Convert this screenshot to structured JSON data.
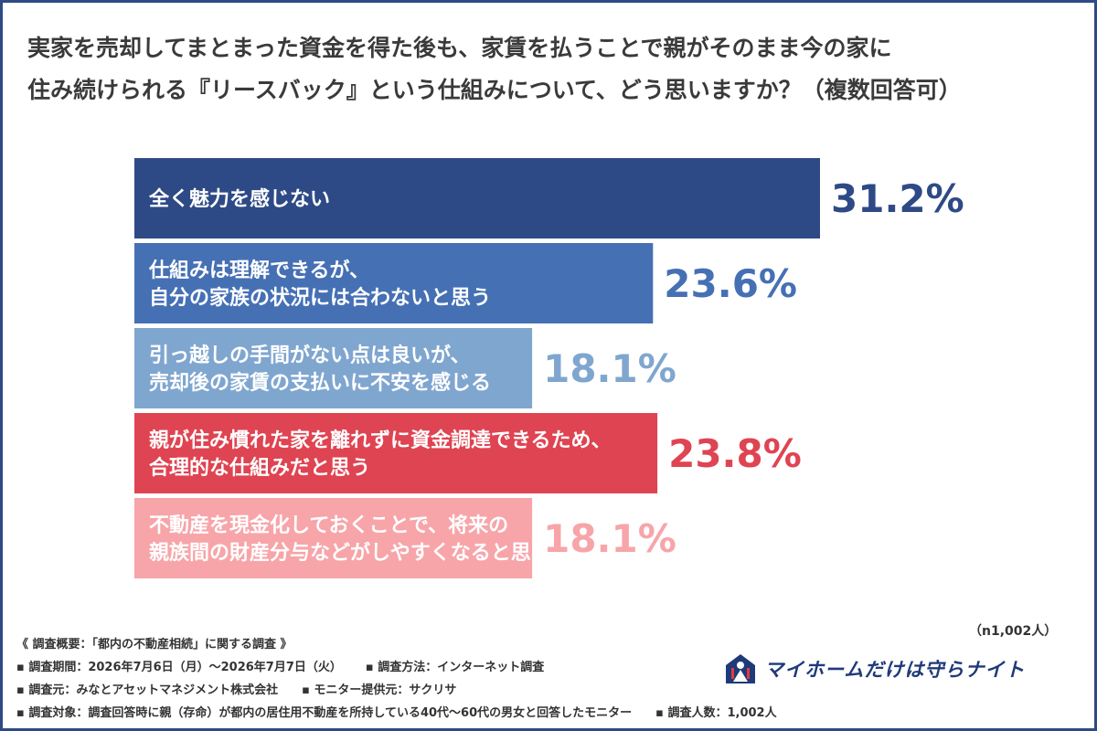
{
  "title": {
    "line1": "実家を売却してまとまった資金を得た後も、家賃を払うことで親がそのまま今の家に",
    "line2": "住み続けられる『リースバック』という仕組みについて、どう思いますか？（複数回答可）"
  },
  "chart_data": {
    "type": "bar",
    "orientation": "horizontal",
    "categories": [
      [
        "全く魅力を感じない"
      ],
      [
        "仕組みは理解できるが、",
        "自分の家族の状況には合わないと思う"
      ],
      [
        "引っ越しの手間がない点は良いが、",
        "売却後の家賃の支払いに不安を感じる"
      ],
      [
        "親が住み慣れた家を離れずに資金調達できるため、",
        "合理的な仕組みだと思う"
      ],
      [
        "不動産を現金化しておくことで、将来の",
        "親族間の財産分与などがしやすくなると思う"
      ]
    ],
    "values": [
      31.2,
      23.6,
      18.1,
      23.8,
      18.1
    ],
    "value_labels": [
      "31.2%",
      "23.6%",
      "18.1%",
      "23.8%",
      "18.1%"
    ],
    "colors": [
      "#2e4a86",
      "#4570b4",
      "#7fa6cf",
      "#df4452",
      "#f7a5a9"
    ],
    "label_colors": [
      "#2e4a86",
      "#4570b4",
      "#7fa6cf",
      "#df4452",
      "#f7a5a9"
    ],
    "xlim": [
      0,
      31.2
    ],
    "grid": false,
    "legend": "none"
  },
  "sample_note": "（n1,002人）",
  "footer": {
    "line1": "《 調査概要：「都内の不動産相続」に関する調査 》",
    "line2a": "▪ 調査期間：2026年7月6日（月）〜2026年7月7日（火）",
    "line2b": "▪ 調査方法：インターネット調査",
    "line3a": "▪ 調査元：みなとアセットマネジメント株式会社",
    "line3b": "▪ モニター提供元：サクリサ",
    "line4a": "▪ 調査対象：調査回答時に親（存命）が都内の居住用不動産を所持している40代〜60代の男女と回答したモニター",
    "line4b": "▪ 調査人数：1,002人"
  },
  "logo": {
    "text": "マイホームだけは守らナイト",
    "icon": "knight-house-icon",
    "color": "#1f3a78"
  }
}
